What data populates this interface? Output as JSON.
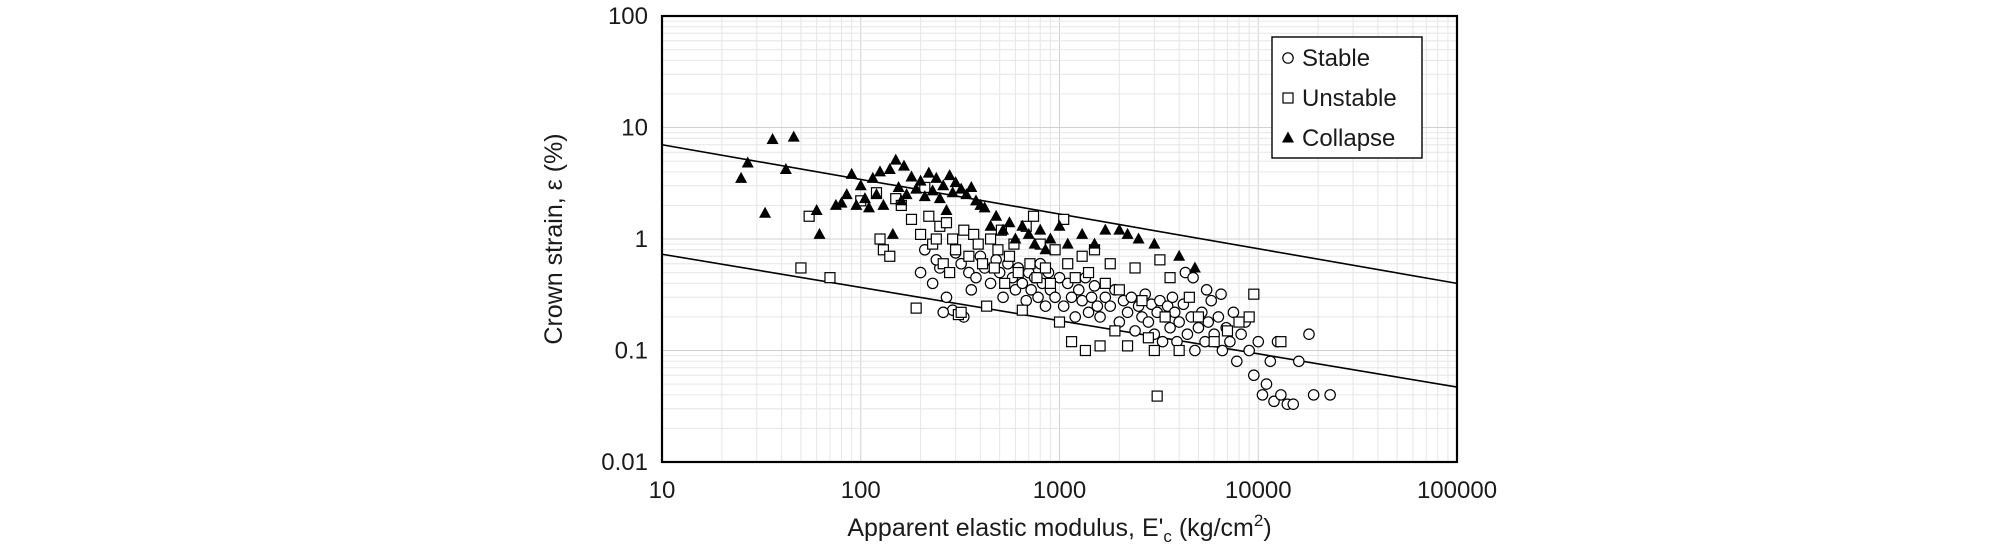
{
  "chart_data": {
    "type": "scatter",
    "title": "",
    "xlabel": "Apparent elastic modulus, E'c (kg/cm2)",
    "xlabel_parts": {
      "main": "Apparent elastic modulus, E'",
      "sub": "c",
      "mid": " (kg/cm",
      "sup": "2",
      "end": ")"
    },
    "ylabel": "Crown strain, ε (%)",
    "x_scale": "log",
    "y_scale": "log",
    "xlim": [
      10,
      100000
    ],
    "ylim": [
      0.01,
      100
    ],
    "x_ticks": [
      "10",
      "100",
      "1000",
      "10000",
      "100000"
    ],
    "y_ticks": [
      "100",
      "10",
      "1",
      "0.1",
      "0.01"
    ],
    "grid": true,
    "legend_position": "top-right",
    "series": [
      {
        "name": "Stable",
        "marker": "circle",
        "points": [
          [
            300,
            0.75
          ],
          [
            320,
            0.6
          ],
          [
            350,
            0.5
          ],
          [
            380,
            0.45
          ],
          [
            400,
            0.7
          ],
          [
            420,
            0.55
          ],
          [
            450,
            0.4
          ],
          [
            480,
            0.65
          ],
          [
            500,
            0.5
          ],
          [
            520,
            0.3
          ],
          [
            550,
            0.6
          ],
          [
            580,
            0.45
          ],
          [
            600,
            0.35
          ],
          [
            620,
            0.55
          ],
          [
            650,
            0.4
          ],
          [
            680,
            0.28
          ],
          [
            700,
            0.5
          ],
          [
            720,
            0.35
          ],
          [
            750,
            0.45
          ],
          [
            780,
            0.3
          ],
          [
            800,
            0.6
          ],
          [
            820,
            0.4
          ],
          [
            850,
            0.25
          ],
          [
            880,
            0.5
          ],
          [
            900,
            0.35
          ],
          [
            950,
            0.3
          ],
          [
            1000,
            0.45
          ],
          [
            1050,
            0.25
          ],
          [
            1100,
            0.4
          ],
          [
            1150,
            0.3
          ],
          [
            1200,
            0.2
          ],
          [
            1250,
            0.35
          ],
          [
            1300,
            0.28
          ],
          [
            1350,
            0.45
          ],
          [
            1400,
            0.22
          ],
          [
            1450,
            0.3
          ],
          [
            1500,
            0.38
          ],
          [
            1550,
            0.25
          ],
          [
            1600,
            0.2
          ],
          [
            1700,
            0.3
          ],
          [
            1800,
            0.25
          ],
          [
            1900,
            0.35
          ],
          [
            2000,
            0.18
          ],
          [
            2100,
            0.28
          ],
          [
            2200,
            0.22
          ],
          [
            2300,
            0.3
          ],
          [
            2400,
            0.15
          ],
          [
            2500,
            0.25
          ],
          [
            2600,
            0.2
          ],
          [
            2700,
            0.32
          ],
          [
            2800,
            0.18
          ],
          [
            2900,
            0.26
          ],
          [
            3000,
            0.14
          ],
          [
            3100,
            0.22
          ],
          [
            3200,
            0.28
          ],
          [
            3300,
            0.12
          ],
          [
            3400,
            0.2
          ],
          [
            3500,
            0.25
          ],
          [
            3600,
            0.16
          ],
          [
            3700,
            0.3
          ],
          [
            3800,
            0.22
          ],
          [
            3900,
            0.12
          ],
          [
            4000,
            0.18
          ],
          [
            4200,
            0.26
          ],
          [
            4400,
            0.14
          ],
          [
            4600,
            0.2
          ],
          [
            4800,
            0.1
          ],
          [
            5000,
            0.16
          ],
          [
            5200,
            0.22
          ],
          [
            5400,
            0.12
          ],
          [
            5600,
            0.18
          ],
          [
            5800,
            0.28
          ],
          [
            6000,
            0.14
          ],
          [
            6300,
            0.2
          ],
          [
            6600,
            0.1
          ],
          [
            6900,
            0.16
          ],
          [
            7200,
            0.12
          ],
          [
            7500,
            0.22
          ],
          [
            7800,
            0.08
          ],
          [
            8200,
            0.14
          ],
          [
            8600,
            0.18
          ],
          [
            9000,
            0.1
          ],
          [
            9500,
            0.06
          ],
          [
            10000,
            0.12
          ],
          [
            10500,
            0.04
          ],
          [
            11000,
            0.05
          ],
          [
            11500,
            0.08
          ],
          [
            12000,
            0.035
          ],
          [
            12500,
            0.12
          ],
          [
            13000,
            0.04
          ],
          [
            14000,
            0.033
          ],
          [
            15000,
            0.033
          ],
          [
            16000,
            0.08
          ],
          [
            18000,
            0.14
          ],
          [
            19000,
            0.04
          ],
          [
            23000,
            0.04
          ],
          [
            4300,
            0.5
          ],
          [
            4700,
            0.45
          ],
          [
            5500,
            0.35
          ],
          [
            6500,
            0.32
          ],
          [
            250,
            0.55
          ],
          [
            200,
            0.5
          ],
          [
            230,
            0.4
          ],
          [
            270,
            0.3
          ],
          [
            290,
            0.23
          ],
          [
            330,
            0.2
          ],
          [
            360,
            0.35
          ],
          [
            260,
            0.22
          ],
          [
            240,
            0.65
          ],
          [
            210,
            0.8
          ]
        ]
      },
      {
        "name": "Unstable",
        "marker": "square",
        "points": [
          [
            50,
            0.55
          ],
          [
            70,
            0.45
          ],
          [
            55,
            1.6
          ],
          [
            100,
            2.2
          ],
          [
            120,
            2.6
          ],
          [
            125,
            1.0
          ],
          [
            130,
            0.8
          ],
          [
            140,
            0.7
          ],
          [
            150,
            2.3
          ],
          [
            160,
            2.0
          ],
          [
            180,
            1.5
          ],
          [
            190,
            0.24
          ],
          [
            200,
            1.1
          ],
          [
            210,
            2.9
          ],
          [
            220,
            1.6
          ],
          [
            230,
            0.9
          ],
          [
            240,
            1.0
          ],
          [
            250,
            1.3
          ],
          [
            260,
            0.6
          ],
          [
            270,
            1.4
          ],
          [
            280,
            0.5
          ],
          [
            290,
            1.0
          ],
          [
            300,
            0.8
          ],
          [
            310,
            0.21
          ],
          [
            320,
            0.22
          ],
          [
            330,
            1.2
          ],
          [
            350,
            0.7
          ],
          [
            370,
            1.1
          ],
          [
            390,
            0.9
          ],
          [
            410,
            0.6
          ],
          [
            430,
            0.25
          ],
          [
            450,
            1.0
          ],
          [
            470,
            0.55
          ],
          [
            490,
            0.8
          ],
          [
            510,
            1.2
          ],
          [
            530,
            0.4
          ],
          [
            560,
            0.7
          ],
          [
            590,
            0.9
          ],
          [
            620,
            0.5
          ],
          [
            650,
            0.23
          ],
          [
            680,
            1.3
          ],
          [
            710,
            0.6
          ],
          [
            740,
            1.6
          ],
          [
            770,
            0.45
          ],
          [
            800,
            0.9
          ],
          [
            850,
            0.55
          ],
          [
            900,
            0.4
          ],
          [
            950,
            0.8
          ],
          [
            1000,
            0.18
          ],
          [
            1050,
            1.5
          ],
          [
            1100,
            0.6
          ],
          [
            1150,
            0.12
          ],
          [
            1200,
            0.45
          ],
          [
            1300,
            0.7
          ],
          [
            1350,
            0.1
          ],
          [
            1400,
            0.5
          ],
          [
            1500,
            0.8
          ],
          [
            1600,
            0.11
          ],
          [
            1700,
            0.4
          ],
          [
            1800,
            0.6
          ],
          [
            1900,
            0.15
          ],
          [
            2000,
            0.35
          ],
          [
            2200,
            0.11
          ],
          [
            2400,
            0.55
          ],
          [
            2600,
            0.28
          ],
          [
            2800,
            0.13
          ],
          [
            3000,
            0.1
          ],
          [
            3100,
            0.039
          ],
          [
            3200,
            0.65
          ],
          [
            3400,
            0.2
          ],
          [
            3600,
            0.45
          ],
          [
            4000,
            0.1
          ],
          [
            4500,
            0.3
          ],
          [
            5000,
            0.2
          ],
          [
            6000,
            0.12
          ],
          [
            7000,
            0.15
          ],
          [
            8000,
            0.18
          ],
          [
            9000,
            0.2
          ],
          [
            9500,
            0.32
          ],
          [
            13000,
            0.12
          ]
        ]
      },
      {
        "name": "Collapse",
        "marker": "triangle",
        "points": [
          [
            25,
            3.5
          ],
          [
            27,
            4.8
          ],
          [
            33,
            1.7
          ],
          [
            36,
            7.8
          ],
          [
            42,
            4.2
          ],
          [
            46,
            8.2
          ],
          [
            60,
            1.8
          ],
          [
            62,
            1.1
          ],
          [
            75,
            2.0
          ],
          [
            80,
            2.1
          ],
          [
            85,
            2.5
          ],
          [
            90,
            3.8
          ],
          [
            95,
            2.0
          ],
          [
            100,
            3.0
          ],
          [
            105,
            2.3
          ],
          [
            110,
            1.9
          ],
          [
            115,
            3.5
          ],
          [
            120,
            2.5
          ],
          [
            125,
            4.0
          ],
          [
            130,
            2.0
          ],
          [
            140,
            4.2
          ],
          [
            145,
            1.1
          ],
          [
            150,
            5.1
          ],
          [
            155,
            2.9
          ],
          [
            160,
            2.2
          ],
          [
            165,
            4.5
          ],
          [
            170,
            2.5
          ],
          [
            180,
            3.6
          ],
          [
            190,
            2.8
          ],
          [
            200,
            3.3
          ],
          [
            210,
            2.4
          ],
          [
            220,
            3.9
          ],
          [
            230,
            2.7
          ],
          [
            240,
            3.5
          ],
          [
            250,
            2.3
          ],
          [
            260,
            3.0
          ],
          [
            270,
            1.8
          ],
          [
            280,
            3.7
          ],
          [
            290,
            2.6
          ],
          [
            300,
            3.2
          ],
          [
            320,
            2.8
          ],
          [
            340,
            2.5
          ],
          [
            360,
            2.9
          ],
          [
            380,
            2.2
          ],
          [
            400,
            2.0
          ],
          [
            420,
            1.9
          ],
          [
            450,
            1.3
          ],
          [
            480,
            1.6
          ],
          [
            520,
            1.2
          ],
          [
            560,
            1.4
          ],
          [
            600,
            1.0
          ],
          [
            650,
            1.3
          ],
          [
            700,
            1.1
          ],
          [
            750,
            0.9
          ],
          [
            800,
            1.2
          ],
          [
            850,
            0.8
          ],
          [
            900,
            1.0
          ],
          [
            1000,
            1.3
          ],
          [
            1100,
            0.9
          ],
          [
            1300,
            1.1
          ],
          [
            1500,
            0.9
          ],
          [
            1700,
            1.2
          ],
          [
            2000,
            1.2
          ],
          [
            2200,
            1.1
          ],
          [
            2500,
            1.0
          ],
          [
            3000,
            0.9
          ],
          [
            4000,
            0.7
          ],
          [
            4800,
            0.55
          ]
        ]
      }
    ],
    "trend_lines": [
      {
        "points": [
          [
            10,
            7.0
          ],
          [
            100000,
            0.4
          ]
        ]
      },
      {
        "points": [
          [
            10,
            0.73
          ],
          [
            100000,
            0.047
          ]
        ]
      }
    ]
  }
}
